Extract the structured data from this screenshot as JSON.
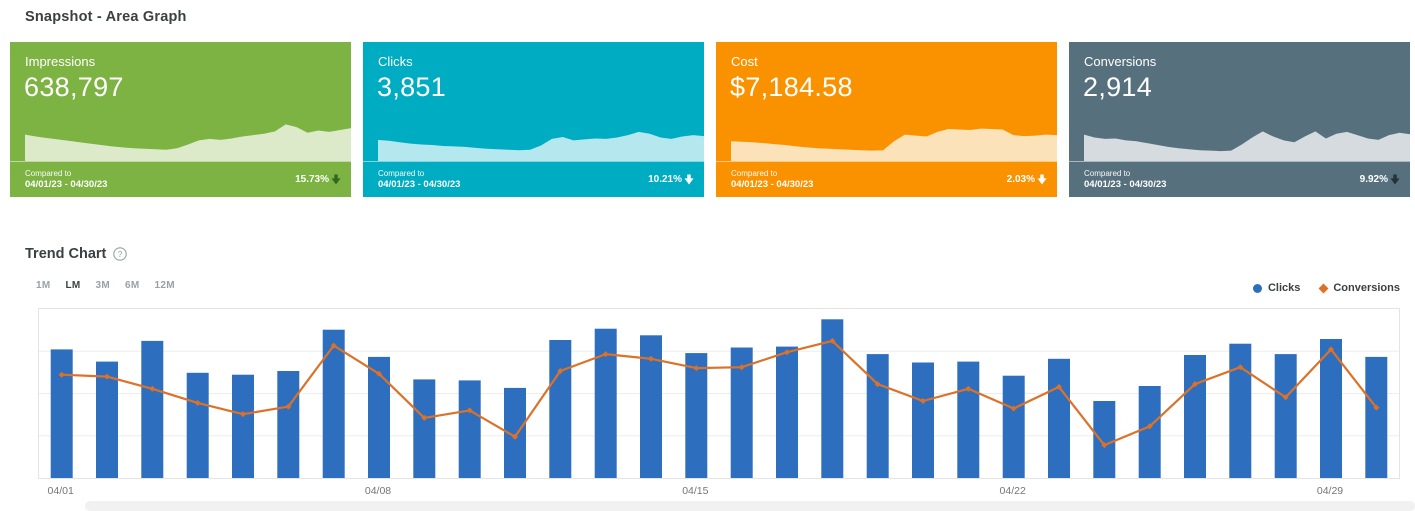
{
  "page": {
    "title": "Snapshot - Area Graph"
  },
  "cards": [
    {
      "label": "Impressions",
      "value": "638,797",
      "compared_label": "Compared to",
      "compared_range": "04/01/23 - 04/30/23",
      "change": "15.73%",
      "direction": "down",
      "bg": "#7CB342",
      "spark_fill": "#DCEAC9",
      "arrow_color": "#33691E",
      "spark": [
        0.56,
        0.52,
        0.49,
        0.46,
        0.43,
        0.4,
        0.37,
        0.34,
        0.31,
        0.29,
        0.27,
        0.26,
        0.25,
        0.24,
        0.27,
        0.35,
        0.44,
        0.47,
        0.45,
        0.48,
        0.52,
        0.55,
        0.58,
        0.63,
        0.78,
        0.72,
        0.6,
        0.65,
        0.62,
        0.66,
        0.7
      ]
    },
    {
      "label": "Clicks",
      "value": "3,851",
      "compared_label": "Compared to",
      "compared_range": "04/01/23 - 04/30/23",
      "change": "10.21%",
      "direction": "down",
      "bg": "#00ACC1",
      "spark_fill": "#B5E7EF",
      "arrow_color": "#FFFFFF",
      "spark": [
        0.45,
        0.43,
        0.4,
        0.37,
        0.35,
        0.34,
        0.32,
        0.31,
        0.3,
        0.28,
        0.26,
        0.25,
        0.24,
        0.23,
        0.24,
        0.33,
        0.47,
        0.51,
        0.44,
        0.46,
        0.48,
        0.47,
        0.5,
        0.55,
        0.62,
        0.58,
        0.5,
        0.47,
        0.52,
        0.55,
        0.53
      ]
    },
    {
      "label": "Cost",
      "value": "$7,184.58",
      "compared_label": "Compared to",
      "compared_range": "04/01/23 - 04/30/23",
      "change": "2.03%",
      "direction": "down",
      "bg": "#FA9200",
      "spark_fill": "#FCE2B8",
      "arrow_color": "#FFFFFF",
      "spark": [
        0.42,
        0.41,
        0.4,
        0.38,
        0.36,
        0.34,
        0.31,
        0.29,
        0.27,
        0.26,
        0.25,
        0.24,
        0.23,
        0.22,
        0.23,
        0.42,
        0.56,
        0.54,
        0.52,
        0.62,
        0.68,
        0.67,
        0.66,
        0.69,
        0.68,
        0.67,
        0.55,
        0.53,
        0.54,
        0.56,
        0.55
      ]
    },
    {
      "label": "Conversions",
      "value": "2,914",
      "compared_label": "Compared to",
      "compared_range": "04/01/23 - 04/30/23",
      "change": "9.92%",
      "direction": "down",
      "bg": "#56717D",
      "spark_fill": "#D5DBDE",
      "arrow_color": "#263238",
      "spark": [
        0.56,
        0.5,
        0.47,
        0.48,
        0.44,
        0.42,
        0.38,
        0.34,
        0.3,
        0.27,
        0.25,
        0.23,
        0.22,
        0.21,
        0.22,
        0.35,
        0.5,
        0.63,
        0.52,
        0.44,
        0.4,
        0.52,
        0.63,
        0.48,
        0.58,
        0.62,
        0.55,
        0.48,
        0.45,
        0.55,
        0.6,
        0.57
      ]
    }
  ],
  "trend": {
    "title": "Trend Chart",
    "help_icon": "question-circle-icon",
    "ranges": [
      {
        "label": "1M",
        "selected": false
      },
      {
        "label": "LM",
        "selected": true
      },
      {
        "label": "3M",
        "selected": false
      },
      {
        "label": "6M",
        "selected": false
      },
      {
        "label": "12M",
        "selected": false
      }
    ],
    "legend": [
      {
        "label": "Clicks",
        "marker": "circle",
        "color": "#2D6FBE"
      },
      {
        "label": "Conversions",
        "marker": "diamond",
        "color": "#DD7127"
      }
    ]
  },
  "chart_data": {
    "type": "bar",
    "title": "Trend Chart",
    "categories": [
      "04/01",
      "04/02",
      "04/03",
      "04/04",
      "04/05",
      "04/06",
      "04/07",
      "04/08",
      "04/09",
      "04/10",
      "04/11",
      "04/12",
      "04/13",
      "04/14",
      "04/15",
      "04/16",
      "04/17",
      "04/18",
      "04/19",
      "04/20",
      "04/21",
      "04/22",
      "04/23",
      "04/24",
      "04/25",
      "04/26",
      "04/27",
      "04/28",
      "04/29",
      "04/30"
    ],
    "series": [
      {
        "name": "Clicks",
        "type": "bar",
        "color": "#2D6FBE",
        "values": [
          137,
          124,
          146,
          112,
          110,
          114,
          158,
          129,
          105,
          104,
          96,
          147,
          159,
          152,
          133,
          139,
          140,
          169,
          132,
          123,
          124,
          109,
          127,
          82,
          98,
          131,
          143,
          132,
          148,
          129
        ]
      },
      {
        "name": "Conversions",
        "type": "line",
        "color": "#DD7127",
        "values": [
          110,
          108,
          95,
          80,
          68,
          76,
          141,
          111,
          64,
          72,
          44,
          114,
          132,
          127,
          117,
          118,
          134,
          146,
          100,
          82,
          95,
          74,
          97,
          35,
          55,
          100,
          118,
          86,
          137,
          75
        ]
      }
    ],
    "xticks": [
      {
        "index": 0,
        "label": "04/01"
      },
      {
        "index": 7,
        "label": "04/08"
      },
      {
        "index": 14,
        "label": "04/15"
      },
      {
        "index": 21,
        "label": "04/22"
      },
      {
        "index": 28,
        "label": "04/29"
      }
    ],
    "ylim": [
      0,
      180
    ],
    "grid": true,
    "gridline_values": [
      45,
      90,
      135
    ],
    "y_axis_labels": false,
    "legend_position": "top-right"
  }
}
